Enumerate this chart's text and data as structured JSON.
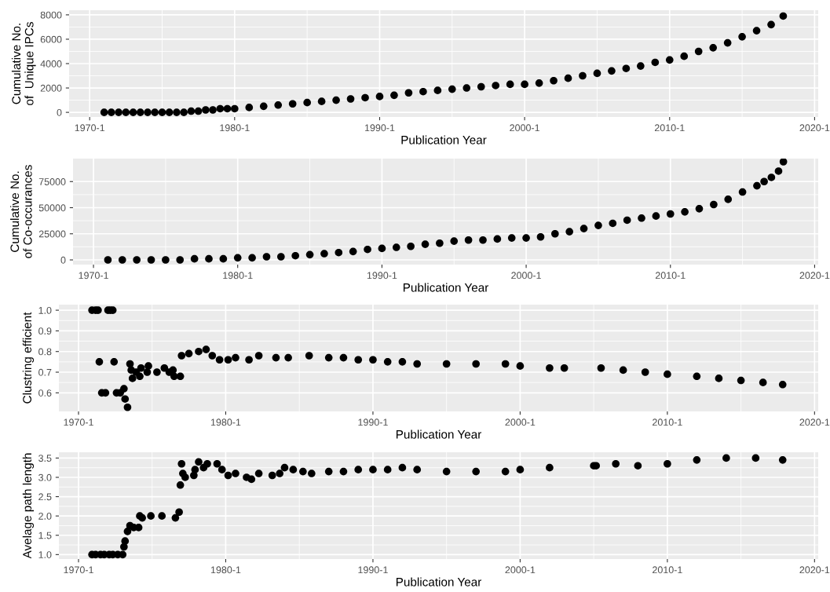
{
  "chart_data": [
    {
      "type": "scatter",
      "xlabel": "Publication Year",
      "ylabel": "Cumulative No.\nof  Unique IPCs",
      "color": "#000000",
      "marker": "circle",
      "grid": true,
      "xlim": [
        "1968-08",
        "2020-04"
      ],
      "xticks": [
        {
          "value": "1970-01",
          "label": "1970-1"
        },
        {
          "value": "1980-01",
          "label": "1980-1"
        },
        {
          "value": "1990-01",
          "label": "1990-1"
        },
        {
          "value": "2000-01",
          "label": "2000-1"
        },
        {
          "value": "2010-01",
          "label": "2010-1"
        },
        {
          "value": "2020-01",
          "label": "2020-1"
        }
      ],
      "ylim": [
        -380,
        8380
      ],
      "yticks": [
        0,
        2000,
        4000,
        6000,
        8000
      ],
      "x": [
        "1971-01",
        "1971-07",
        "1972-01",
        "1972-07",
        "1973-01",
        "1973-07",
        "1974-01",
        "1974-07",
        "1975-01",
        "1975-07",
        "1976-01",
        "1976-07",
        "1977-01",
        "1977-07",
        "1978-01",
        "1978-07",
        "1979-01",
        "1979-07",
        "1980-01",
        "1981-01",
        "1982-01",
        "1983-01",
        "1984-01",
        "1985-01",
        "1986-01",
        "1987-01",
        "1988-01",
        "1989-01",
        "1990-01",
        "1991-01",
        "1992-01",
        "1993-01",
        "1994-01",
        "1995-01",
        "1996-01",
        "1997-01",
        "1998-01",
        "1999-01",
        "2000-01",
        "2001-01",
        "2002-01",
        "2003-01",
        "2004-01",
        "2005-01",
        "2006-01",
        "2007-01",
        "2008-01",
        "2009-01",
        "2010-01",
        "2011-01",
        "2012-01",
        "2013-01",
        "2014-01",
        "2015-01",
        "2016-01",
        "2017-01",
        "2017-11"
      ],
      "values": [
        0,
        0,
        0,
        0,
        0,
        0,
        0,
        0,
        0,
        0,
        0,
        0,
        100,
        100,
        200,
        200,
        300,
        300,
        300,
        400,
        500,
        600,
        700,
        800,
        900,
        1000,
        1100,
        1200,
        1300,
        1400,
        1600,
        1700,
        1800,
        1900,
        2000,
        2100,
        2200,
        2300,
        2300,
        2400,
        2600,
        2800,
        3000,
        3200,
        3400,
        3600,
        3800,
        4100,
        4300,
        4600,
        5000,
        5300,
        5700,
        6200,
        6700,
        7200,
        7900
      ]
    },
    {
      "type": "scatter",
      "xlabel": "Publication Year",
      "ylabel": "Cumulative No.\nof Co-occurances",
      "color": "#000000",
      "marker": "circle",
      "grid": true,
      "xlim": [
        "1968-08",
        "2020-04"
      ],
      "xticks": [
        {
          "value": "1970-01",
          "label": "1970-1"
        },
        {
          "value": "1980-01",
          "label": "1980-1"
        },
        {
          "value": "1990-01",
          "label": "1990-1"
        },
        {
          "value": "2000-01",
          "label": "2000-1"
        },
        {
          "value": "2010-01",
          "label": "2010-1"
        },
        {
          "value": "2020-01",
          "label": "2020-1"
        }
      ],
      "ylim": [
        -4500,
        97000
      ],
      "yticks": [
        0,
        25000,
        50000,
        75000
      ],
      "x": [
        "1971-01",
        "1972-01",
        "1973-01",
        "1974-01",
        "1975-01",
        "1976-01",
        "1977-01",
        "1978-01",
        "1979-01",
        "1980-01",
        "1981-01",
        "1982-01",
        "1983-01",
        "1984-01",
        "1985-01",
        "1986-01",
        "1987-01",
        "1988-01",
        "1989-01",
        "1990-01",
        "1991-01",
        "1992-01",
        "1993-01",
        "1994-01",
        "1995-01",
        "1996-01",
        "1997-01",
        "1998-01",
        "1999-01",
        "2000-01",
        "2001-01",
        "2002-01",
        "2003-01",
        "2004-01",
        "2005-01",
        "2006-01",
        "2007-01",
        "2008-01",
        "2009-01",
        "2010-01",
        "2011-01",
        "2012-01",
        "2013-01",
        "2014-01",
        "2015-01",
        "2016-01",
        "2016-07",
        "2017-01",
        "2017-07",
        "2017-11"
      ],
      "values": [
        0,
        0,
        0,
        0,
        0,
        0,
        1000,
        1000,
        1000,
        2000,
        2000,
        3000,
        3000,
        4000,
        5000,
        6000,
        7000,
        8000,
        10000,
        11000,
        12000,
        13000,
        15000,
        16000,
        18000,
        19000,
        19000,
        20000,
        21000,
        21000,
        22000,
        25000,
        27000,
        30000,
        33000,
        35000,
        38000,
        40000,
        42000,
        44000,
        46000,
        49000,
        53000,
        58000,
        65000,
        71000,
        75000,
        79000,
        85000,
        94000
      ]
    },
    {
      "type": "scatter",
      "xlabel": "Publication Year",
      "ylabel": "Clustring efficient",
      "color": "#000000",
      "marker": "circle",
      "grid": true,
      "xlim": [
        "1968-09",
        "2020-04"
      ],
      "xticks": [
        {
          "value": "1970-01",
          "label": "1970-1"
        },
        {
          "value": "1980-01",
          "label": "1980-1"
        },
        {
          "value": "1990-01",
          "label": "1990-1"
        },
        {
          "value": "2000-01",
          "label": "2000-1"
        },
        {
          "value": "2010-01",
          "label": "2010-1"
        },
        {
          "value": "2020-01",
          "label": "2020-1"
        }
      ],
      "ylim": [
        0.51,
        1.027
      ],
      "yticks": [
        {
          "value": 0.6,
          "label": "0.6"
        },
        {
          "value": 0.7,
          "label": "0.7"
        },
        {
          "value": 0.8,
          "label": "0.8"
        },
        {
          "value": 0.9,
          "label": "0.9"
        },
        {
          "value": 1.0,
          "label": "1.0"
        }
      ],
      "x": [
        "1970-12",
        "1971-03",
        "1971-05",
        "1971-06",
        "1971-08",
        "1971-11",
        "1972-01",
        "1972-03",
        "1972-05",
        "1972-06",
        "1972-08",
        "1972-11",
        "1973-02",
        "1973-03",
        "1973-05",
        "1973-07",
        "1973-08",
        "1973-09",
        "1973-12",
        "1974-03",
        "1974-04",
        "1974-09",
        "1974-10",
        "1975-05",
        "1975-11",
        "1976-03",
        "1976-06",
        "1976-07",
        "1976-12",
        "1977-01",
        "1977-07",
        "1978-03",
        "1978-09",
        "1979-02",
        "1979-08",
        "1980-03",
        "1980-09",
        "1981-08",
        "1982-04",
        "1983-06",
        "1984-04",
        "1985-09",
        "1987-01",
        "1988-01",
        "1989-01",
        "1990-01",
        "1991-01",
        "1992-01",
        "1993-01",
        "1995-01",
        "1997-01",
        "1999-01",
        "2000-01",
        "2002-01",
        "2003-01",
        "2005-07",
        "2007-01",
        "2008-07",
        "2010-01",
        "2012-01",
        "2013-07",
        "2015-01",
        "2016-07",
        "2017-11"
      ],
      "values": [
        1.0,
        1.0,
        1.0,
        0.75,
        0.6,
        0.6,
        1.0,
        1.0,
        1.0,
        0.75,
        0.6,
        0.6,
        0.62,
        0.57,
        0.53,
        0.74,
        0.71,
        0.67,
        0.7,
        0.68,
        0.72,
        0.7,
        0.73,
        0.7,
        0.72,
        0.7,
        0.71,
        0.68,
        0.68,
        0.78,
        0.79,
        0.8,
        0.81,
        0.78,
        0.76,
        0.76,
        0.77,
        0.76,
        0.78,
        0.77,
        0.77,
        0.78,
        0.77,
        0.77,
        0.76,
        0.76,
        0.75,
        0.75,
        0.74,
        0.74,
        0.74,
        0.74,
        0.73,
        0.72,
        0.72,
        0.72,
        0.71,
        0.7,
        0.69,
        0.68,
        0.67,
        0.66,
        0.65,
        0.64
      ]
    },
    {
      "type": "scatter",
      "xlabel": "Publication Year",
      "ylabel": "Avelage path length",
      "color": "#000000",
      "marker": "circle",
      "grid": true,
      "xlim": [
        "1968-09",
        "2020-04"
      ],
      "xticks": [
        {
          "value": "1970-01",
          "label": "1970-1"
        },
        {
          "value": "1980-01",
          "label": "1980-1"
        },
        {
          "value": "1990-01",
          "label": "1990-1"
        },
        {
          "value": "2000-01",
          "label": "2000-1"
        },
        {
          "value": "2010-01",
          "label": "2010-1"
        },
        {
          "value": "2020-01",
          "label": "2020-1"
        }
      ],
      "ylim": [
        0.885,
        3.65
      ],
      "yticks": [
        {
          "value": 1.0,
          "label": "1.0"
        },
        {
          "value": 1.5,
          "label": "1.5"
        },
        {
          "value": 2.0,
          "label": "2.0"
        },
        {
          "value": 2.5,
          "label": "2.5"
        },
        {
          "value": 3.0,
          "label": "3.0"
        },
        {
          "value": 3.5,
          "label": "3.5"
        }
      ],
      "x": [
        "1970-12",
        "1971-03",
        "1971-07",
        "1971-10",
        "1972-02",
        "1972-05",
        "1972-09",
        "1973-01",
        "1973-02",
        "1973-03",
        "1973-05",
        "1973-07",
        "1973-10",
        "1974-02",
        "1974-03",
        "1974-05",
        "1974-12",
        "1975-09",
        "1976-08",
        "1976-11",
        "1976-12",
        "1977-01",
        "1977-02",
        "1977-04",
        "1977-11",
        "1977-12",
        "1978-03",
        "1978-07",
        "1978-10",
        "1979-06",
        "1979-10",
        "1980-03",
        "1980-09",
        "1981-06",
        "1981-10",
        "1982-04",
        "1983-03",
        "1983-09",
        "1984-01",
        "1984-08",
        "1985-04",
        "1985-11",
        "1987-01",
        "1988-01",
        "1989-01",
        "1990-01",
        "1991-01",
        "1992-01",
        "1993-01",
        "1995-01",
        "1997-01",
        "1999-01",
        "2000-01",
        "2002-01",
        "2005-01",
        "2005-03",
        "2006-07",
        "2008-01",
        "2010-01",
        "2012-01",
        "2014-01",
        "2016-01",
        "2017-11"
      ],
      "values": [
        1.0,
        1.0,
        1.0,
        1.0,
        1.0,
        1.0,
        1.0,
        1.0,
        1.2,
        1.35,
        1.6,
        1.75,
        1.7,
        1.7,
        2.0,
        1.95,
        2.0,
        2.0,
        1.95,
        2.1,
        2.8,
        3.35,
        3.1,
        3.0,
        3.05,
        3.2,
        3.4,
        3.25,
        3.35,
        3.35,
        3.2,
        3.05,
        3.1,
        3.0,
        2.95,
        3.1,
        3.05,
        3.1,
        3.25,
        3.2,
        3.15,
        3.1,
        3.15,
        3.15,
        3.2,
        3.2,
        3.2,
        3.25,
        3.2,
        3.15,
        3.15,
        3.15,
        3.2,
        3.25,
        3.3,
        3.3,
        3.35,
        3.3,
        3.35,
        3.45,
        3.5,
        3.5,
        3.45
      ]
    }
  ]
}
